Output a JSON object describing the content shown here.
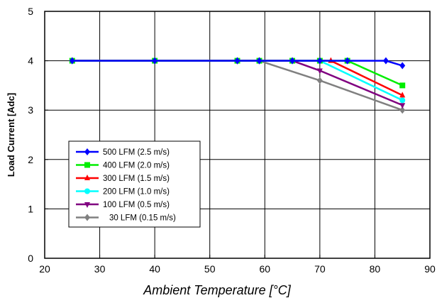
{
  "chart_data": {
    "type": "line",
    "xlabel": "Ambient Temperature [°C]",
    "ylabel": "Load Current  [Adc]",
    "xlim": [
      20,
      90
    ],
    "ylim": [
      0,
      5
    ],
    "xticks": [
      "20",
      "30",
      "40",
      "50",
      "60",
      "70",
      "80",
      "90"
    ],
    "yticks": [
      "0",
      "1",
      "2",
      "3",
      "4",
      "5"
    ],
    "grid": true,
    "legend_position": "bottom-left",
    "series": [
      {
        "name": "500 LFM (2.5 m/s)",
        "color": "#0000ff",
        "marker": "diamond",
        "x": [
          25,
          40,
          55,
          59,
          65,
          70,
          75,
          82,
          85
        ],
        "y": [
          4,
          4,
          4,
          4,
          4,
          4,
          4,
          4,
          3.9
        ]
      },
      {
        "name": "400 LFM (2.0 m/s)",
        "color": "#00ee00",
        "marker": "square",
        "x": [
          25,
          40,
          55,
          59,
          65,
          70,
          75,
          85
        ],
        "y": [
          4,
          4,
          4,
          4,
          4,
          4,
          4,
          3.5
        ]
      },
      {
        "name": "300 LFM (1.5 m/s)",
        "color": "#ff0000",
        "marker": "triangle",
        "x": [
          25,
          40,
          55,
          59,
          65,
          72,
          85
        ],
        "y": [
          4,
          4,
          4,
          4,
          4,
          4,
          3.3
        ]
      },
      {
        "name": "200 LFM (1.0 m/s)",
        "color": "#00ffff",
        "marker": "circle",
        "x": [
          25,
          40,
          55,
          59,
          65,
          70,
          85
        ],
        "y": [
          4,
          4,
          4,
          4,
          4,
          4,
          3.2
        ]
      },
      {
        "name": "100 LFM (0.5 m/s)",
        "color": "#800080",
        "marker": "triangle-down",
        "x": [
          25,
          40,
          55,
          59,
          65,
          70,
          85
        ],
        "y": [
          4,
          4,
          4,
          4,
          4,
          3.8,
          3.1
        ]
      },
      {
        "name": "30 LFM (0.15 m/s)",
        "color": "#808080",
        "marker": "diamond",
        "x": [
          25,
          40,
          55,
          59,
          70,
          85
        ],
        "y": [
          4,
          4,
          4,
          4,
          3.6,
          3
        ]
      }
    ]
  }
}
